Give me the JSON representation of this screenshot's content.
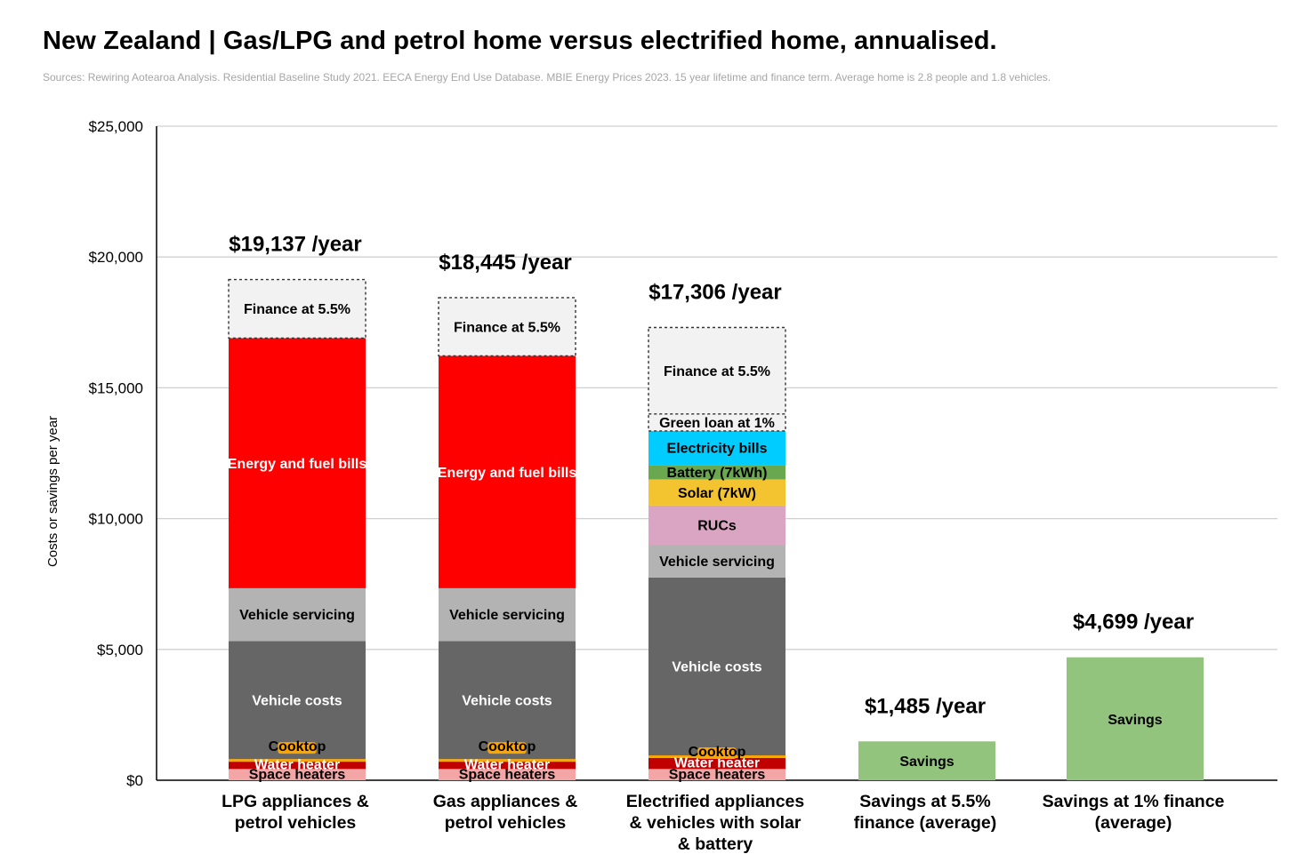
{
  "title": "New Zealand  |  Gas/LPG and petrol home versus electrified home, annualised.",
  "subtitle": "Sources: Rewiring Aotearoa Analysis. Residential Baseline Study 2021. EECA Energy End Use Database. MBIE Energy Prices 2023. 15 year lifetime and finance term. Average home is 2.8 people and 1.8 vehicles.",
  "chart_data": {
    "type": "bar",
    "stacked": true,
    "ylabel": "Costs or savings per year",
    "ylim": [
      0,
      25000
    ],
    "yticks": [
      {
        "value": 0,
        "label": "$0"
      },
      {
        "value": 5000,
        "label": "$5,000"
      },
      {
        "value": 10000,
        "label": "$10,000"
      },
      {
        "value": 15000,
        "label": "$15,000"
      },
      {
        "value": 20000,
        "label": "$20,000"
      },
      {
        "value": 25000,
        "label": "$25,000"
      }
    ],
    "grid": true,
    "categories": [
      [
        "LPG appliances &",
        "petrol vehicles"
      ],
      [
        "Gas appliances &",
        "petrol vehicles"
      ],
      [
        "Electrified appliances",
        "& vehicles with solar",
        "& battery"
      ],
      [
        "Savings at 5.5%",
        "finance (average)"
      ],
      [
        "Savings at 1% finance",
        "(average)"
      ]
    ],
    "totals": [
      "$19,137 /year",
      "$18,445 /year",
      "$17,306 /year",
      "$1,485 /year",
      "$4,699 /year"
    ],
    "bars": [
      {
        "segments": [
          {
            "label": "Space heaters",
            "value": 430,
            "color": "#f4a5a5",
            "text_color": "#000000",
            "label_size": 14
          },
          {
            "label": "Water heater",
            "value": 280,
            "color": "#c00000",
            "text_color": "#ffffff",
            "label_size": 12
          },
          {
            "label": "Cooktop",
            "value": 100,
            "color": "#ffa500",
            "text_color": "#000000",
            "label_size": 10,
            "label_offset": -14
          },
          {
            "label": "Vehicle costs",
            "value": 4510,
            "color": "#666666",
            "text_color": "#ffffff"
          },
          {
            "label": "Vehicle servicing",
            "value": 2020,
            "color": "#b3b3b3",
            "text_color": "#000000"
          },
          {
            "label": "Energy and fuel bills",
            "value": 9560,
            "color": "#ff0000",
            "text_color": "#ffffff"
          },
          {
            "label": "Finance at 5.5%",
            "value": 2237,
            "color": "#f2f2f2",
            "text_color": "#000000",
            "dashed": true
          }
        ]
      },
      {
        "segments": [
          {
            "label": "Space heaters",
            "value": 430,
            "color": "#f4a5a5",
            "text_color": "#000000",
            "label_size": 14
          },
          {
            "label": "Water heater",
            "value": 280,
            "color": "#c00000",
            "text_color": "#ffffff",
            "label_size": 12
          },
          {
            "label": "Cooktop",
            "value": 100,
            "color": "#ffa500",
            "text_color": "#000000",
            "label_size": 10,
            "label_offset": -14
          },
          {
            "label": "Vehicle costs",
            "value": 4510,
            "color": "#666666",
            "text_color": "#ffffff"
          },
          {
            "label": "Vehicle servicing",
            "value": 2020,
            "color": "#b3b3b3",
            "text_color": "#000000"
          },
          {
            "label": "Energy and fuel bills",
            "value": 8880,
            "color": "#ff0000",
            "text_color": "#ffffff"
          },
          {
            "label": "Finance at 5.5%",
            "value": 2225,
            "color": "#f2f2f2",
            "text_color": "#000000",
            "dashed": true
          }
        ]
      },
      {
        "segments": [
          {
            "label": "Space heaters",
            "value": 430,
            "color": "#f4a5a5",
            "text_color": "#000000",
            "label_size": 14
          },
          {
            "label": "Water heater",
            "value": 420,
            "color": "#c00000",
            "text_color": "#ffffff",
            "label_size": 12
          },
          {
            "label": "Cooktop",
            "value": 100,
            "color": "#ffa500",
            "text_color": "#000000",
            "label_size": 10,
            "label_offset": -4
          },
          {
            "label": "Vehicle costs",
            "value": 6800,
            "color": "#666666",
            "text_color": "#ffffff"
          },
          {
            "label": "Vehicle servicing",
            "value": 1250,
            "color": "#b3b3b3",
            "text_color": "#000000"
          },
          {
            "label": "RUCs",
            "value": 1500,
            "color": "#d9a5c3",
            "text_color": "#000000"
          },
          {
            "label": "Solar (7kW)",
            "value": 1000,
            "color": "#f4c430",
            "text_color": "#000000",
            "label_size": 17
          },
          {
            "label": "Battery (7kWh)",
            "value": 550,
            "color": "#6aa84f",
            "text_color": "#000000"
          },
          {
            "label": "Electricity bills",
            "value": 1300,
            "color": "#00ccff",
            "text_color": "#000000"
          },
          {
            "label": "Green loan at 1%",
            "value": 650,
            "color": "#f2f2f2",
            "text_color": "#000000",
            "dashed": true
          },
          {
            "label": "Finance at 5.5%",
            "value": 3306,
            "color": "#f2f2f2",
            "text_color": "#000000",
            "dashed": true
          }
        ]
      },
      {
        "segments": [
          {
            "label": "Savings",
            "value": 1485,
            "color": "#93c47d",
            "text_color": "#000000",
            "label_size": 17
          }
        ]
      },
      {
        "segments": [
          {
            "label": "Savings",
            "value": 4699,
            "color": "#93c47d",
            "text_color": "#000000",
            "label_size": 17
          }
        ]
      }
    ]
  }
}
